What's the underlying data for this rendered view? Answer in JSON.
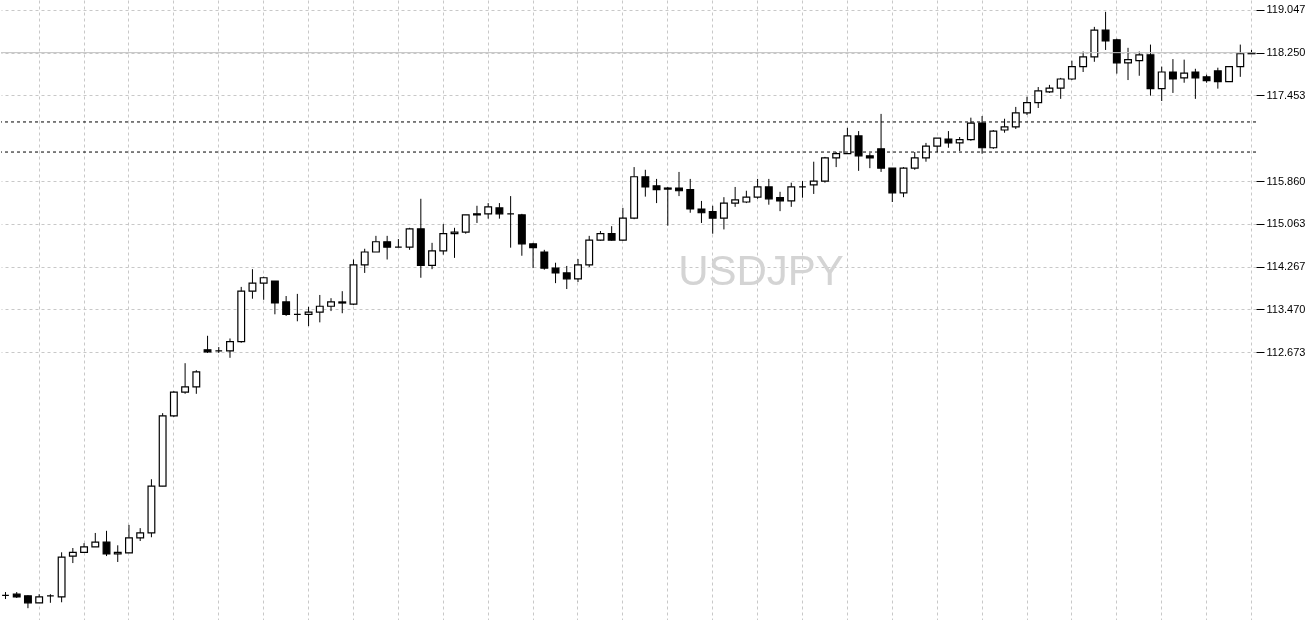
{
  "chart_data": {
    "type": "candlestick",
    "title": "USDJPY",
    "categories": [
      null,
      null,
      null,
      null,
      null,
      null,
      null,
      null,
      null,
      null,
      null,
      null,
      null,
      null,
      null,
      null,
      null,
      null,
      null,
      null,
      null,
      null,
      null,
      null,
      null,
      null,
      null,
      null,
      null,
      null,
      null,
      null,
      null,
      null,
      null,
      null,
      null,
      null,
      null,
      null,
      null,
      null,
      null,
      null,
      null,
      null,
      null,
      null,
      null,
      null,
      null,
      null,
      null,
      null,
      null,
      null,
      null,
      null,
      null,
      null,
      null,
      null,
      null,
      null,
      null,
      null,
      null,
      null,
      null,
      null,
      null,
      null,
      null,
      null,
      null,
      null,
      null,
      null,
      null,
      null,
      null,
      null,
      null,
      null,
      null,
      null,
      null,
      null,
      null,
      null,
      null,
      null,
      null,
      null,
      null,
      null,
      null,
      null,
      null,
      null,
      null,
      null,
      null,
      null,
      null,
      null,
      null,
      null,
      null,
      null,
      null,
      null
    ],
    "ohlc": [
      [
        108.15,
        108.21,
        108.08,
        108.15
      ],
      [
        108.17,
        108.21,
        108.1,
        108.12
      ],
      [
        108.14,
        108.15,
        107.91,
        108.01
      ],
      [
        108.01,
        108.17,
        108.01,
        108.12
      ],
      [
        108.14,
        108.17,
        108.01,
        108.14
      ],
      [
        108.12,
        108.95,
        108.02,
        108.86
      ],
      [
        108.88,
        109.03,
        108.75,
        108.95
      ],
      [
        108.95,
        109.12,
        108.95,
        109.05
      ],
      [
        109.05,
        109.31,
        109.05,
        109.14
      ],
      [
        109.14,
        109.35,
        108.88,
        108.92
      ],
      [
        108.92,
        109.08,
        108.77,
        108.95
      ],
      [
        108.94,
        109.46,
        108.94,
        109.22
      ],
      [
        109.22,
        109.4,
        109.16,
        109.31
      ],
      [
        109.31,
        110.31,
        109.23,
        110.18
      ],
      [
        110.18,
        111.54,
        110.18,
        111.49
      ],
      [
        111.49,
        111.95,
        111.47,
        111.93
      ],
      [
        111.93,
        112.47,
        111.9,
        112.03
      ],
      [
        112.03,
        112.34,
        111.9,
        112.31
      ],
      [
        112.72,
        112.98,
        112.66,
        112.68
      ],
      [
        112.7,
        112.77,
        112.66,
        112.7
      ],
      [
        112.7,
        112.93,
        112.57,
        112.87
      ],
      [
        112.87,
        113.89,
        112.85,
        113.81
      ],
      [
        113.81,
        114.22,
        113.67,
        113.96
      ],
      [
        113.96,
        114.08,
        113.65,
        114.06
      ],
      [
        114.0,
        114.0,
        113.38,
        113.59
      ],
      [
        113.61,
        113.72,
        113.35,
        113.38
      ],
      [
        113.38,
        113.76,
        113.25,
        113.38
      ],
      [
        113.38,
        113.52,
        113.16,
        113.42
      ],
      [
        113.42,
        113.74,
        113.23,
        113.53
      ],
      [
        113.53,
        113.68,
        113.44,
        113.61
      ],
      [
        113.61,
        113.81,
        113.4,
        113.59
      ],
      [
        113.57,
        114.4,
        113.55,
        114.3
      ],
      [
        114.3,
        114.6,
        114.15,
        114.54
      ],
      [
        114.54,
        114.84,
        114.54,
        114.73
      ],
      [
        114.73,
        114.84,
        114.4,
        114.63
      ],
      [
        114.63,
        114.78,
        114.63,
        114.63
      ],
      [
        114.63,
        114.99,
        114.58,
        114.97
      ],
      [
        114.97,
        115.53,
        114.06,
        114.29
      ],
      [
        114.29,
        114.71,
        114.22,
        114.56
      ],
      [
        114.56,
        115.06,
        114.49,
        114.88
      ],
      [
        114.88,
        114.99,
        114.43,
        114.91
      ],
      [
        114.91,
        115.23,
        114.88,
        115.23
      ],
      [
        115.25,
        115.4,
        115.08,
        115.23
      ],
      [
        115.25,
        115.45,
        115.16,
        115.38
      ],
      [
        115.36,
        115.45,
        115.16,
        115.25
      ],
      [
        115.25,
        115.58,
        114.62,
        115.25
      ],
      [
        115.23,
        115.25,
        114.47,
        114.69
      ],
      [
        114.69,
        114.71,
        114.24,
        114.62
      ],
      [
        114.54,
        114.58,
        114.21,
        114.24
      ],
      [
        114.24,
        114.34,
        113.96,
        114.15
      ],
      [
        114.15,
        114.28,
        113.85,
        114.04
      ],
      [
        114.04,
        114.41,
        113.98,
        114.3
      ],
      [
        114.3,
        114.84,
        114.26,
        114.76
      ],
      [
        114.76,
        114.93,
        114.75,
        114.88
      ],
      [
        114.88,
        115.02,
        114.75,
        114.76
      ],
      [
        114.76,
        115.36,
        114.75,
        115.17
      ],
      [
        115.17,
        116.12,
        115.15,
        115.94
      ],
      [
        115.94,
        116.07,
        115.57,
        115.75
      ],
      [
        115.77,
        115.9,
        115.45,
        115.7
      ],
      [
        115.73,
        115.75,
        115.03,
        115.71
      ],
      [
        115.73,
        116.03,
        115.58,
        115.68
      ],
      [
        115.7,
        115.9,
        115.27,
        115.34
      ],
      [
        115.34,
        115.49,
        115.08,
        115.27
      ],
      [
        115.29,
        115.4,
        114.88,
        115.17
      ],
      [
        115.17,
        115.56,
        114.96,
        115.45
      ],
      [
        115.45,
        115.75,
        115.38,
        115.51
      ],
      [
        115.47,
        115.68,
        115.45,
        115.56
      ],
      [
        115.56,
        115.9,
        115.53,
        115.75
      ],
      [
        115.75,
        115.9,
        115.42,
        115.53
      ],
      [
        115.55,
        115.66,
        115.3,
        115.49
      ],
      [
        115.49,
        115.83,
        115.38,
        115.75
      ],
      [
        115.75,
        115.86,
        115.55,
        115.75
      ],
      [
        115.79,
        116.22,
        115.62,
        115.86
      ],
      [
        115.86,
        116.31,
        115.83,
        116.29
      ],
      [
        116.29,
        116.4,
        116.12,
        116.37
      ],
      [
        116.37,
        116.85,
        116.37,
        116.7
      ],
      [
        116.7,
        116.79,
        116.05,
        116.33
      ],
      [
        116.33,
        116.38,
        116.1,
        116.29
      ],
      [
        116.46,
        117.11,
        116.03,
        116.1
      ],
      [
        116.1,
        116.1,
        115.47,
        115.64
      ],
      [
        115.64,
        116.12,
        115.56,
        116.1
      ],
      [
        116.1,
        116.4,
        116.07,
        116.29
      ],
      [
        116.29,
        116.57,
        116.22,
        116.51
      ],
      [
        116.51,
        116.66,
        116.4,
        116.66
      ],
      [
        116.64,
        116.79,
        116.48,
        116.57
      ],
      [
        116.57,
        116.68,
        116.42,
        116.63
      ],
      [
        116.63,
        117.04,
        116.61,
        116.94
      ],
      [
        116.94,
        117.07,
        116.37,
        116.48
      ],
      [
        116.48,
        116.81,
        116.46,
        116.79
      ],
      [
        116.81,
        117.02,
        116.76,
        116.87
      ],
      [
        116.87,
        117.24,
        116.83,
        117.13
      ],
      [
        117.13,
        117.43,
        117.09,
        117.32
      ],
      [
        117.32,
        117.61,
        117.22,
        117.54
      ],
      [
        117.52,
        117.65,
        117.5,
        117.59
      ],
      [
        117.59,
        117.78,
        117.39,
        117.76
      ],
      [
        117.76,
        118.1,
        117.74,
        117.99
      ],
      [
        117.99,
        118.27,
        117.89,
        118.17
      ],
      [
        118.17,
        118.73,
        118.08,
        118.67
      ],
      [
        118.67,
        119.01,
        118.3,
        118.47
      ],
      [
        118.49,
        118.51,
        117.86,
        118.06
      ],
      [
        118.06,
        118.34,
        117.74,
        118.12
      ],
      [
        118.1,
        118.27,
        117.82,
        118.21
      ],
      [
        118.21,
        118.4,
        117.45,
        117.58
      ],
      [
        117.58,
        117.99,
        117.35,
        117.89
      ],
      [
        117.89,
        118.13,
        117.5,
        117.76
      ],
      [
        117.78,
        118.12,
        117.69,
        117.87
      ],
      [
        117.89,
        117.95,
        117.39,
        117.78
      ],
      [
        117.8,
        117.84,
        117.69,
        117.73
      ],
      [
        117.91,
        117.97,
        117.58,
        117.71
      ],
      [
        117.71,
        117.99,
        117.71,
        117.99
      ],
      [
        117.99,
        118.4,
        117.8,
        118.23
      ],
      [
        118.25,
        118.3,
        118.23,
        118.23
      ]
    ],
    "ylim": [
      107.69,
      119.23
    ],
    "yticks": [
      112.673,
      {
        "value": 113.47,
        "label": "113.470"
      },
      114.267,
      115.063,
      {
        "value": 115.86,
        "label": "115.860"
      },
      117.453,
      {
        "value": 118.25,
        "label": "118.250"
      },
      119.047
    ],
    "ref_lines": [
      {
        "axis": "y",
        "value": 116.96,
        "color": "#000000",
        "line_style": "dashed"
      },
      {
        "axis": "y",
        "value": 116.4,
        "color": "#000000",
        "line_style": "dashed"
      },
      {
        "axis": "y",
        "value": 118.25,
        "color": "#c0c0c0",
        "line_style": "solid"
      }
    ],
    "grid": true,
    "tick_labels": "y"
  }
}
